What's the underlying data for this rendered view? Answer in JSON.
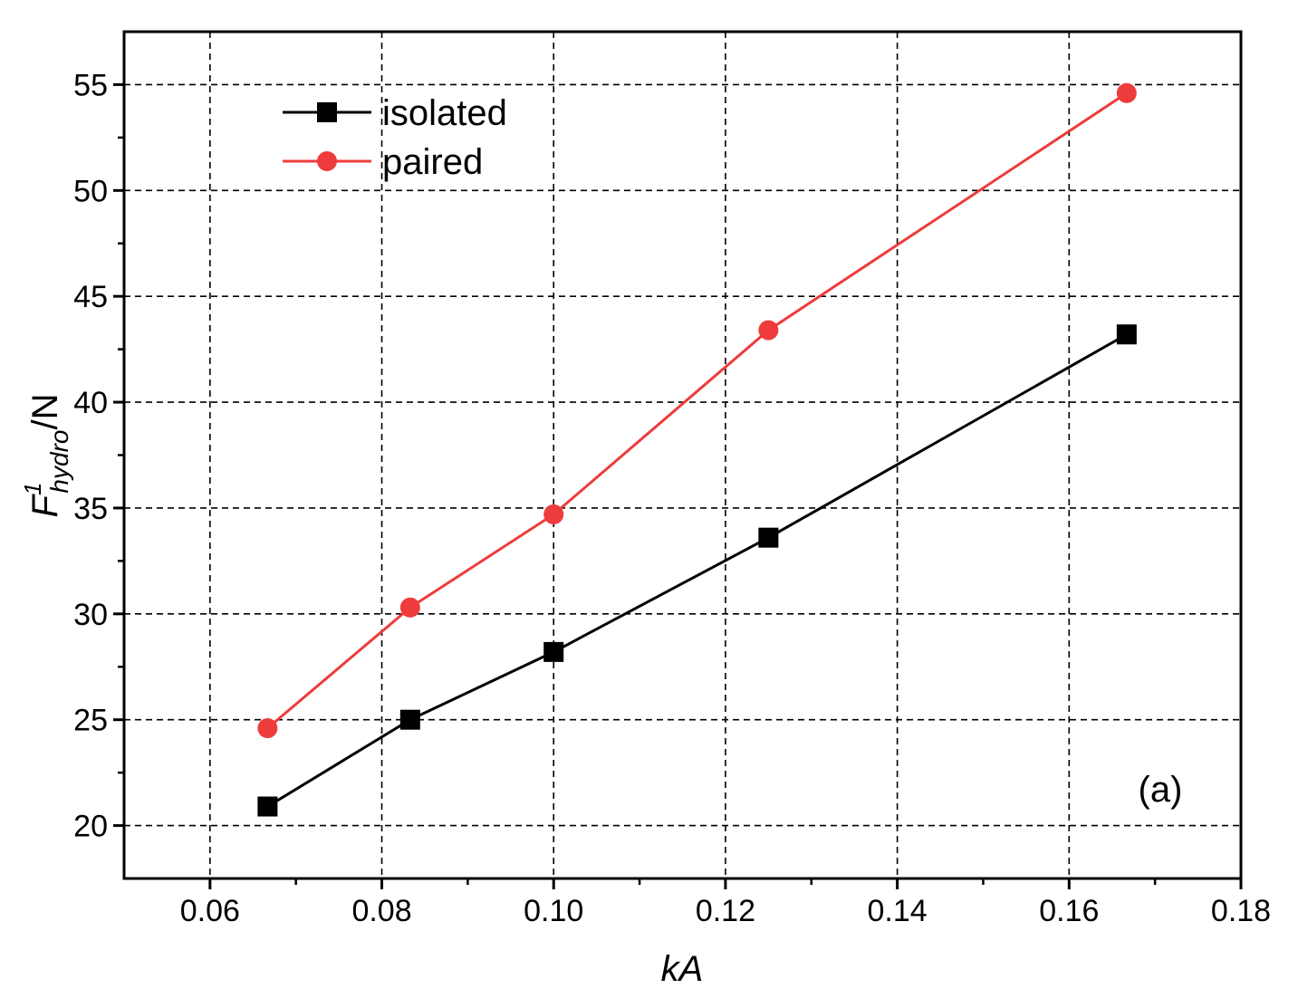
{
  "chart_data": {
    "type": "line",
    "xlabel": "kA",
    "ylabel": {
      "base": "F",
      "superscript": "1",
      "subscript": "hydro",
      "unit": "/N"
    },
    "xlim": [
      0.05,
      0.18
    ],
    "ylim": [
      17.5,
      57.5
    ],
    "xticks": [
      "0.06",
      "0.08",
      "0.10",
      "0.12",
      "0.14",
      "0.16",
      "0.18"
    ],
    "yticks": [
      "20",
      "25",
      "30",
      "35",
      "40",
      "45",
      "50",
      "55"
    ],
    "grid": true,
    "legend_position": "top-left",
    "annotation": "(a)",
    "series": [
      {
        "name": "isolated",
        "color": "#000000",
        "marker": "square",
        "x": [
          0.0667,
          0.0833,
          0.1,
          0.125,
          0.1667
        ],
        "y": [
          20.9,
          25.0,
          28.2,
          33.6,
          43.2
        ]
      },
      {
        "name": "paired",
        "color": "#ee3b3b",
        "marker": "circle",
        "x": [
          0.0667,
          0.0833,
          0.1,
          0.125,
          0.1667
        ],
        "y": [
          24.6,
          30.3,
          34.7,
          43.4,
          54.6
        ]
      }
    ]
  }
}
